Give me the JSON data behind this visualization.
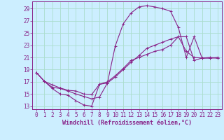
{
  "xlabel": "Windchill (Refroidissement éolien,°C)",
  "bg_color": "#cceeff",
  "grid_color": "#aaddcc",
  "line_color": "#882288",
  "x_ticks": [
    0,
    1,
    2,
    3,
    4,
    5,
    6,
    7,
    8,
    9,
    10,
    11,
    12,
    13,
    14,
    15,
    16,
    17,
    18,
    19,
    20,
    21,
    22,
    23
  ],
  "y_ticks": [
    13,
    15,
    17,
    19,
    21,
    23,
    25,
    27,
    29
  ],
  "xlim": [
    -0.5,
    23.5
  ],
  "ylim": [
    12.5,
    30.2
  ],
  "series1_x": [
    0,
    1,
    2,
    3,
    4,
    5,
    6,
    7,
    8,
    9,
    10,
    11,
    12,
    13,
    14,
    15,
    16,
    17,
    18,
    19,
    20,
    21,
    22,
    23
  ],
  "series1_y": [
    18.5,
    17.1,
    15.9,
    15.0,
    14.8,
    13.9,
    13.2,
    13.0,
    16.6,
    16.8,
    22.9,
    26.5,
    28.3,
    29.3,
    29.5,
    29.3,
    29.0,
    28.6,
    25.9,
    21.0,
    24.4,
    20.9,
    21.0,
    20.9
  ],
  "series2_x": [
    0,
    1,
    2,
    3,
    4,
    5,
    6,
    7,
    8,
    9,
    10,
    11,
    12,
    13,
    14,
    15,
    16,
    17,
    18,
    19,
    20,
    21,
    22,
    23
  ],
  "series2_y": [
    18.5,
    17.1,
    16.1,
    15.9,
    15.5,
    15.0,
    14.6,
    14.2,
    14.5,
    16.8,
    17.8,
    19.0,
    20.2,
    21.3,
    22.5,
    23.0,
    23.5,
    24.0,
    24.4,
    22.0,
    21.0,
    20.9,
    20.9,
    21.0
  ],
  "series3_x": [
    0,
    1,
    2,
    3,
    4,
    5,
    6,
    7,
    8,
    9,
    10,
    11,
    12,
    13,
    14,
    15,
    16,
    17,
    18,
    19,
    20,
    21,
    22,
    23
  ],
  "series3_y": [
    18.5,
    17.1,
    16.5,
    16.0,
    15.6,
    15.5,
    15.0,
    14.9,
    16.6,
    17.0,
    18.0,
    19.2,
    20.5,
    21.0,
    21.5,
    22.0,
    22.3,
    23.0,
    24.4,
    24.4,
    20.5,
    20.9,
    20.9,
    20.9
  ],
  "tick_fontsize": 5.5,
  "xlabel_fontsize": 6.0,
  "lw": 0.8,
  "ms": 2.5
}
